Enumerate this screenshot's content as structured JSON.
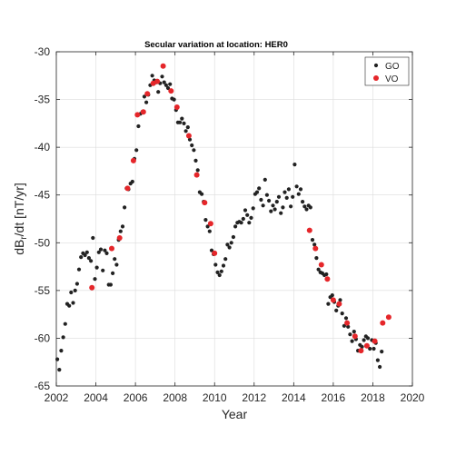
{
  "chart_data": {
    "type": "scatter",
    "title": "Secular variation at location:  HER0",
    "xlabel": "Year",
    "ylabel": "dB",
    "ylabel_sub": "r",
    "ylabel_suffix": "/dt [nT/yr]",
    "xlim": [
      2002,
      2020
    ],
    "ylim": [
      -65,
      -30
    ],
    "xticks": [
      2002,
      2004,
      2006,
      2008,
      2010,
      2012,
      2014,
      2016,
      2018,
      2020
    ],
    "yticks": [
      -30,
      -35,
      -40,
      -45,
      -50,
      -55,
      -60,
      -65
    ],
    "grid": true,
    "legend_position": "top-right",
    "series": [
      {
        "name": "GO",
        "color": "#222222",
        "points": [
          [
            2002.05,
            -62.2
          ],
          [
            2002.15,
            -63.3
          ],
          [
            2002.25,
            -61.3
          ],
          [
            2002.35,
            -59.9
          ],
          [
            2002.45,
            -58.5
          ],
          [
            2002.55,
            -56.4
          ],
          [
            2002.65,
            -56.6
          ],
          [
            2002.75,
            -55.2
          ],
          [
            2002.85,
            -56.3
          ],
          [
            2002.95,
            -55.0
          ],
          [
            2003.05,
            -54.3
          ],
          [
            2003.15,
            -52.8
          ],
          [
            2003.25,
            -51.5
          ],
          [
            2003.35,
            -51.1
          ],
          [
            2003.45,
            -51.3
          ],
          [
            2003.55,
            -51.0
          ],
          [
            2003.65,
            -51.6
          ],
          [
            2003.75,
            -51.9
          ],
          [
            2003.85,
            -49.5
          ],
          [
            2003.95,
            -53.8
          ],
          [
            2004.05,
            -52.6
          ],
          [
            2004.15,
            -51.0
          ],
          [
            2004.25,
            -50.7
          ],
          [
            2004.35,
            -52.9
          ],
          [
            2004.45,
            -50.8
          ],
          [
            2004.55,
            -51.1
          ],
          [
            2004.65,
            -54.4
          ],
          [
            2004.75,
            -54.4
          ],
          [
            2004.85,
            -53.2
          ],
          [
            2004.95,
            -51.7
          ],
          [
            2005.05,
            -52.3
          ],
          [
            2005.15,
            -49.7
          ],
          [
            2005.25,
            -48.8
          ],
          [
            2005.35,
            -48.3
          ],
          [
            2005.45,
            -46.3
          ],
          [
            2005.55,
            -44.3
          ],
          [
            2005.65,
            -44.4
          ],
          [
            2005.75,
            -43.8
          ],
          [
            2005.85,
            -43.6
          ],
          [
            2005.95,
            -41.2
          ],
          [
            2006.05,
            -40.3
          ],
          [
            2006.15,
            -37.8
          ],
          [
            2006.25,
            -36.5
          ],
          [
            2006.35,
            -36.3
          ],
          [
            2006.45,
            -34.7
          ],
          [
            2006.55,
            -35.3
          ],
          [
            2006.65,
            -34.5
          ],
          [
            2006.75,
            -33.5
          ],
          [
            2006.85,
            -32.5
          ],
          [
            2006.95,
            -33.0
          ],
          [
            2007.05,
            -33.2
          ],
          [
            2007.15,
            -34.2
          ],
          [
            2007.25,
            -33.3
          ],
          [
            2007.35,
            -32.6
          ],
          [
            2007.45,
            -33.2
          ],
          [
            2007.55,
            -33.5
          ],
          [
            2007.65,
            -33.8
          ],
          [
            2007.75,
            -33.4
          ],
          [
            2007.85,
            -34.9
          ],
          [
            2007.95,
            -35.0
          ],
          [
            2008.05,
            -36.1
          ],
          [
            2008.15,
            -37.4
          ],
          [
            2008.25,
            -37.4
          ],
          [
            2008.35,
            -37.0
          ],
          [
            2008.45,
            -37.5
          ],
          [
            2008.55,
            -38.3
          ],
          [
            2008.65,
            -37.9
          ],
          [
            2008.75,
            -39.2
          ],
          [
            2008.85,
            -39.8
          ],
          [
            2008.95,
            -40.3
          ],
          [
            2009.05,
            -41.4
          ],
          [
            2009.15,
            -42.4
          ],
          [
            2009.25,
            -44.7
          ],
          [
            2009.35,
            -44.9
          ],
          [
            2009.45,
            -45.7
          ],
          [
            2009.55,
            -47.6
          ],
          [
            2009.65,
            -48.3
          ],
          [
            2009.75,
            -48.8
          ],
          [
            2009.85,
            -50.8
          ],
          [
            2009.95,
            -51.2
          ],
          [
            2010.05,
            -52.3
          ],
          [
            2010.15,
            -53.1
          ],
          [
            2010.25,
            -53.4
          ],
          [
            2010.35,
            -53.0
          ],
          [
            2010.45,
            -52.4
          ],
          [
            2010.55,
            -51.7
          ],
          [
            2010.65,
            -50.2
          ],
          [
            2010.75,
            -50.5
          ],
          [
            2010.85,
            -50.0
          ],
          [
            2010.95,
            -49.4
          ],
          [
            2011.05,
            -48.3
          ],
          [
            2011.15,
            -47.9
          ],
          [
            2011.25,
            -47.8
          ],
          [
            2011.35,
            -47.9
          ],
          [
            2011.45,
            -47.5
          ],
          [
            2011.55,
            -46.6
          ],
          [
            2011.65,
            -47.1
          ],
          [
            2011.75,
            -47.9
          ],
          [
            2011.85,
            -47.4
          ],
          [
            2011.95,
            -46.4
          ],
          [
            2012.05,
            -44.9
          ],
          [
            2012.15,
            -44.7
          ],
          [
            2012.25,
            -44.3
          ],
          [
            2012.35,
            -45.5
          ],
          [
            2012.45,
            -46.1
          ],
          [
            2012.55,
            -43.4
          ],
          [
            2012.65,
            -45.0
          ],
          [
            2012.75,
            -45.6
          ],
          [
            2012.85,
            -46.7
          ],
          [
            2012.95,
            -46.1
          ],
          [
            2013.05,
            -46.5
          ],
          [
            2013.15,
            -45.7
          ],
          [
            2013.25,
            -45.2
          ],
          [
            2013.35,
            -46.9
          ],
          [
            2013.45,
            -46.3
          ],
          [
            2013.55,
            -44.7
          ],
          [
            2013.65,
            -45.3
          ],
          [
            2013.75,
            -44.4
          ],
          [
            2013.85,
            -46.2
          ],
          [
            2013.95,
            -45.2
          ],
          [
            2014.05,
            -41.8
          ],
          [
            2014.15,
            -44.1
          ],
          [
            2014.25,
            -44.9
          ],
          [
            2014.35,
            -44.4
          ],
          [
            2014.45,
            -45.7
          ],
          [
            2014.55,
            -46.2
          ],
          [
            2014.65,
            -46.5
          ],
          [
            2014.75,
            -46.1
          ],
          [
            2014.85,
            -46.3
          ],
          [
            2014.95,
            -49.7
          ],
          [
            2015.05,
            -50.2
          ],
          [
            2015.15,
            -51.6
          ],
          [
            2015.25,
            -52.8
          ],
          [
            2015.35,
            -53.1
          ],
          [
            2015.45,
            -53.2
          ],
          [
            2015.55,
            -53.4
          ],
          [
            2015.65,
            -53.3
          ],
          [
            2015.75,
            -56.4
          ],
          [
            2015.85,
            -55.7
          ],
          [
            2015.95,
            -55.5
          ],
          [
            2016.05,
            -56.2
          ],
          [
            2016.15,
            -57.1
          ],
          [
            2016.25,
            -56.6
          ],
          [
            2016.35,
            -56.0
          ],
          [
            2016.45,
            -57.4
          ],
          [
            2016.55,
            -58.7
          ],
          [
            2016.65,
            -57.9
          ],
          [
            2016.75,
            -58.8
          ],
          [
            2016.85,
            -59.6
          ],
          [
            2016.95,
            -60.3
          ],
          [
            2017.05,
            -59.3
          ],
          [
            2017.15,
            -60.1
          ],
          [
            2017.25,
            -61.3
          ],
          [
            2017.35,
            -60.7
          ],
          [
            2017.45,
            -60.9
          ],
          [
            2017.55,
            -60.2
          ],
          [
            2017.65,
            -59.8
          ],
          [
            2017.75,
            -60.0
          ],
          [
            2017.85,
            -61.1
          ],
          [
            2017.95,
            -60.2
          ],
          [
            2018.05,
            -61.1
          ],
          [
            2018.15,
            -60.5
          ],
          [
            2018.25,
            -62.3
          ],
          [
            2018.35,
            -63.0
          ],
          [
            2018.45,
            -61.4
          ]
        ]
      },
      {
        "name": "VO",
        "color": "#e5262a",
        "points": [
          [
            2003.8,
            -54.7
          ],
          [
            2004.8,
            -50.6
          ],
          [
            2005.2,
            -49.5
          ],
          [
            2005.6,
            -44.3
          ],
          [
            2005.9,
            -41.4
          ],
          [
            2006.1,
            -36.6
          ],
          [
            2006.4,
            -36.3
          ],
          [
            2006.6,
            -34.4
          ],
          [
            2006.9,
            -33.3
          ],
          [
            2007.1,
            -33.1
          ],
          [
            2007.4,
            -31.5
          ],
          [
            2007.8,
            -34.1
          ],
          [
            2008.1,
            -35.8
          ],
          [
            2008.7,
            -38.8
          ],
          [
            2009.1,
            -42.9
          ],
          [
            2009.5,
            -45.8
          ],
          [
            2009.8,
            -48.0
          ],
          [
            2010.0,
            -51.1
          ],
          [
            2014.8,
            -48.7
          ],
          [
            2015.1,
            -50.6
          ],
          [
            2015.4,
            -52.3
          ],
          [
            2015.7,
            -53.8
          ],
          [
            2016.0,
            -56.0
          ],
          [
            2016.3,
            -56.4
          ],
          [
            2016.7,
            -58.4
          ],
          [
            2017.1,
            -59.8
          ],
          [
            2017.4,
            -61.3
          ],
          [
            2017.7,
            -60.8
          ],
          [
            2018.1,
            -60.3
          ],
          [
            2018.5,
            -58.4
          ],
          [
            2018.8,
            -57.8
          ]
        ]
      }
    ]
  }
}
